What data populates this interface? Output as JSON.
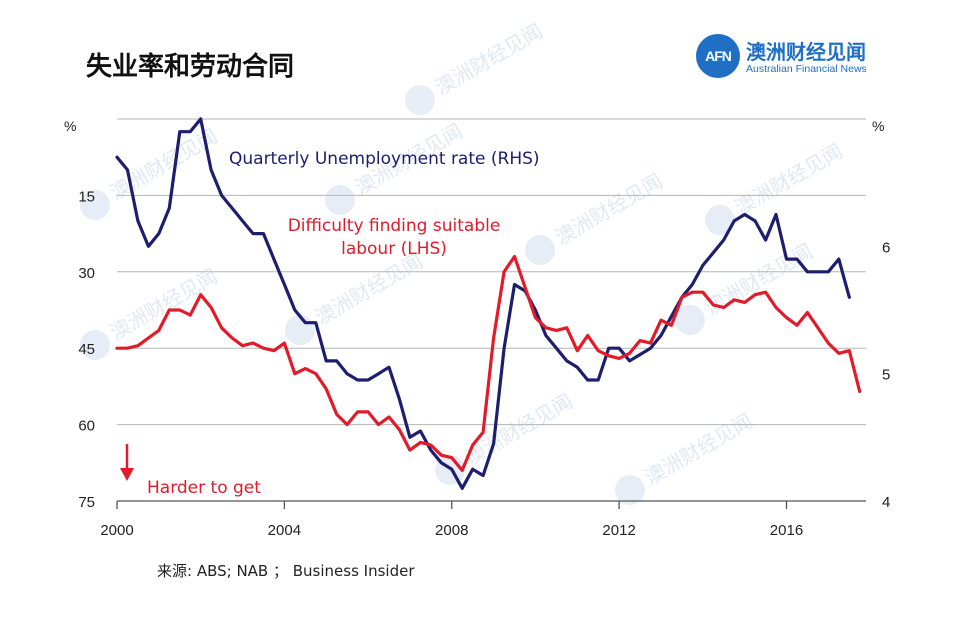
{
  "page": {
    "title": "失业率和劳动合同",
    "source": "来源: ABS; NAB ； Business Insider"
  },
  "logo": {
    "mark": "AFN",
    "name_cn": "澳洲财经见闻",
    "name_en": "Australian Financial News",
    "color": "#1f6fc4"
  },
  "chart_data": {
    "type": "line",
    "title": "",
    "annotation": "Harder to get",
    "left_axis": {
      "unit": "%",
      "reversed": true,
      "range": [
        75,
        0
      ],
      "ticks": [
        "15",
        "30",
        "45",
        "60",
        "75"
      ],
      "tick_values": [
        15,
        30,
        45,
        60,
        75
      ]
    },
    "right_axis": {
      "unit": "%",
      "range": [
        4,
        7
      ],
      "ticks": [
        "4",
        "5",
        "6"
      ],
      "tick_values": [
        4,
        5,
        6
      ]
    },
    "x_axis": {
      "range": [
        2000,
        2017.9
      ],
      "ticks": [
        "2000",
        "2004",
        "2008",
        "2012",
        "2016"
      ],
      "tick_values": [
        2000,
        2004,
        2008,
        2012,
        2016
      ]
    },
    "grid": true,
    "series": [
      {
        "name": "Quarterly Unemployment rate (RHS)",
        "label": "Quarterly Unemployment rate (RHS)",
        "axis": "right",
        "color": "#1d1e6e",
        "points": [
          [
            2000.0,
            6.7
          ],
          [
            2000.25,
            6.6
          ],
          [
            2000.5,
            6.2
          ],
          [
            2000.75,
            6.0
          ],
          [
            2001.0,
            6.1
          ],
          [
            2001.25,
            6.3
          ],
          [
            2001.5,
            6.9
          ],
          [
            2001.75,
            6.9
          ],
          [
            2002.0,
            7.0
          ],
          [
            2002.25,
            6.6
          ],
          [
            2002.5,
            6.4
          ],
          [
            2002.75,
            6.3
          ],
          [
            2003.0,
            6.2
          ],
          [
            2003.25,
            6.1
          ],
          [
            2003.5,
            6.1
          ],
          [
            2003.75,
            5.9
          ],
          [
            2004.0,
            5.7
          ],
          [
            2004.25,
            5.5
          ],
          [
            2004.5,
            5.4
          ],
          [
            2004.75,
            5.4
          ],
          [
            2005.0,
            5.1
          ],
          [
            2005.25,
            5.1
          ],
          [
            2005.5,
            5.0
          ],
          [
            2005.75,
            4.95
          ],
          [
            2006.0,
            4.95
          ],
          [
            2006.25,
            5.0
          ],
          [
            2006.5,
            5.05
          ],
          [
            2006.75,
            4.8
          ],
          [
            2007.0,
            4.5
          ],
          [
            2007.25,
            4.55
          ],
          [
            2007.5,
            4.4
          ],
          [
            2007.75,
            4.3
          ],
          [
            2008.0,
            4.25
          ],
          [
            2008.25,
            4.1
          ],
          [
            2008.5,
            4.25
          ],
          [
            2008.75,
            4.2
          ],
          [
            2009.0,
            4.45
          ],
          [
            2009.25,
            5.2
          ],
          [
            2009.5,
            5.7
          ],
          [
            2009.75,
            5.65
          ],
          [
            2010.0,
            5.5
          ],
          [
            2010.25,
            5.3
          ],
          [
            2010.5,
            5.2
          ],
          [
            2010.75,
            5.1
          ],
          [
            2011.0,
            5.05
          ],
          [
            2011.25,
            4.95
          ],
          [
            2011.5,
            4.95
          ],
          [
            2011.75,
            5.2
          ],
          [
            2012.0,
            5.2
          ],
          [
            2012.25,
            5.1
          ],
          [
            2012.5,
            5.15
          ],
          [
            2012.75,
            5.2
          ],
          [
            2013.0,
            5.3
          ],
          [
            2013.25,
            5.45
          ],
          [
            2013.5,
            5.6
          ],
          [
            2013.75,
            5.7
          ],
          [
            2014.0,
            5.85
          ],
          [
            2014.25,
            5.95
          ],
          [
            2014.5,
            6.05
          ],
          [
            2014.75,
            6.2
          ],
          [
            2015.0,
            6.25
          ],
          [
            2015.25,
            6.2
          ],
          [
            2015.5,
            6.05
          ],
          [
            2015.75,
            6.25
          ],
          [
            2016.0,
            5.9
          ],
          [
            2016.25,
            5.9
          ],
          [
            2016.5,
            5.8
          ],
          [
            2016.75,
            5.8
          ],
          [
            2017.0,
            5.8
          ],
          [
            2017.25,
            5.9
          ],
          [
            2017.5,
            5.6
          ]
        ]
      },
      {
        "name": "Difficulty finding suitable labour (LHS)",
        "label_lines": [
          "Difficulty finding suitable",
          "labour (LHS)"
        ],
        "axis": "left",
        "color": "#e21b2a",
        "points": [
          [
            2000.0,
            45
          ],
          [
            2000.25,
            45
          ],
          [
            2000.5,
            44.5
          ],
          [
            2000.75,
            43
          ],
          [
            2001.0,
            41.5
          ],
          [
            2001.25,
            37.5
          ],
          [
            2001.5,
            37.5
          ],
          [
            2001.75,
            38.5
          ],
          [
            2002.0,
            34.5
          ],
          [
            2002.25,
            37
          ],
          [
            2002.5,
            41
          ],
          [
            2002.75,
            43
          ],
          [
            2003.0,
            44.5
          ],
          [
            2003.25,
            44
          ],
          [
            2003.5,
            45
          ],
          [
            2003.75,
            45.5
          ],
          [
            2004.0,
            44
          ],
          [
            2004.25,
            50
          ],
          [
            2004.5,
            49
          ],
          [
            2004.75,
            50
          ],
          [
            2005.0,
            53
          ],
          [
            2005.25,
            58
          ],
          [
            2005.5,
            60
          ],
          [
            2005.75,
            57.5
          ],
          [
            2006.0,
            57.5
          ],
          [
            2006.25,
            60
          ],
          [
            2006.5,
            58.5
          ],
          [
            2006.75,
            61
          ],
          [
            2007.0,
            65
          ],
          [
            2007.25,
            63.5
          ],
          [
            2007.5,
            64
          ],
          [
            2007.75,
            66
          ],
          [
            2008.0,
            66.5
          ],
          [
            2008.25,
            69
          ],
          [
            2008.5,
            64
          ],
          [
            2008.75,
            61.5
          ],
          [
            2009.0,
            43
          ],
          [
            2009.25,
            30
          ],
          [
            2009.5,
            27
          ],
          [
            2009.75,
            33
          ],
          [
            2010.0,
            39
          ],
          [
            2010.25,
            41
          ],
          [
            2010.5,
            41.5
          ],
          [
            2010.75,
            41
          ],
          [
            2011.0,
            45.5
          ],
          [
            2011.25,
            42.5
          ],
          [
            2011.5,
            45.5
          ],
          [
            2011.75,
            46.5
          ],
          [
            2012.0,
            47
          ],
          [
            2012.25,
            46
          ],
          [
            2012.5,
            43.5
          ],
          [
            2012.75,
            44
          ],
          [
            2013.0,
            39.5
          ],
          [
            2013.25,
            40.5
          ],
          [
            2013.5,
            35
          ],
          [
            2013.75,
            34
          ],
          [
            2014.0,
            34
          ],
          [
            2014.25,
            36.5
          ],
          [
            2014.5,
            37
          ],
          [
            2014.75,
            35.5
          ],
          [
            2015.0,
            36
          ],
          [
            2015.25,
            34.5
          ],
          [
            2015.5,
            34
          ],
          [
            2015.75,
            37
          ],
          [
            2016.0,
            39
          ],
          [
            2016.25,
            40.5
          ],
          [
            2016.5,
            38
          ],
          [
            2016.75,
            41
          ],
          [
            2017.0,
            44
          ],
          [
            2017.25,
            46
          ],
          [
            2017.5,
            45.5
          ],
          [
            2017.75,
            53.5
          ]
        ]
      }
    ]
  }
}
